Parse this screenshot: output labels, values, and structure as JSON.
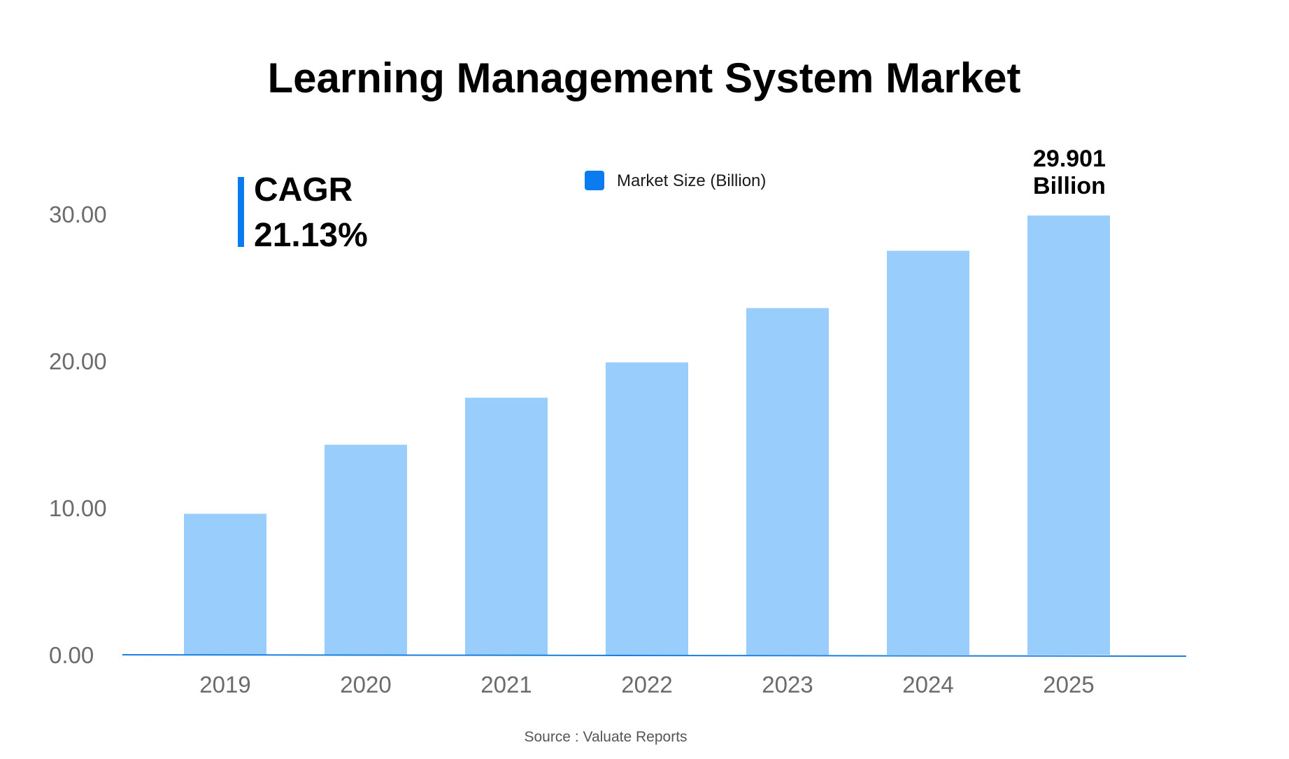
{
  "chart_data": {
    "type": "bar",
    "title": "Learning Management System Market",
    "xlabel": "",
    "ylabel": "",
    "categories": [
      "2019",
      "2020",
      "2021",
      "2022",
      "2023",
      "2024",
      "2025"
    ],
    "series": [
      {
        "name": "Market Size (Billion)",
        "values": [
          9.6,
          14.3,
          17.5,
          19.9,
          23.6,
          27.5,
          29.9
        ]
      }
    ],
    "ylim": [
      0,
      30
    ],
    "yticks": [
      "0.00",
      "10.00",
      "20.00",
      "30.00"
    ],
    "ytick_values": [
      0,
      10,
      20,
      30
    ],
    "annotations": {
      "cagr_label": "CAGR",
      "cagr_value": "21.13%",
      "last_value_line1": "29.901",
      "last_value_line2": "Billion"
    },
    "legend_position": "top-center",
    "grid": false,
    "colors": {
      "bar": "#99cdfb",
      "accent": "#0a7cf0",
      "axis": "#1b7fe0"
    },
    "source": "Source : Valuate Reports"
  }
}
